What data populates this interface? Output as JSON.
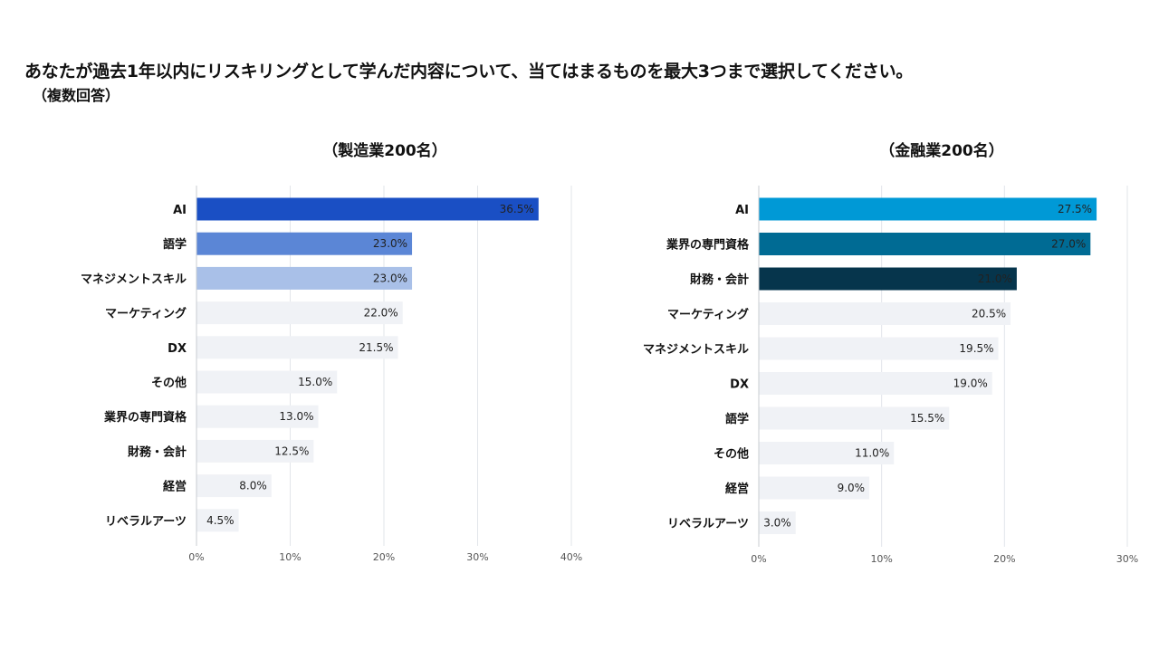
{
  "title": "あなたが過去1年以内にリスキリングとして学んだ内容について、当てはまるものを最大3つまで選択してください。",
  "subtitle": "（複数回答）",
  "chart_data": [
    {
      "type": "bar",
      "orientation": "horizontal",
      "title": "（製造業200名）",
      "categories": [
        "AI",
        "語学",
        "マネジメントスキル",
        "マーケティング",
        "DX",
        "その他",
        "業界の専門資格",
        "財務・会計",
        "経営",
        "リベラルアーツ"
      ],
      "values": [
        36.5,
        23.0,
        23.0,
        22.0,
        21.5,
        15.0,
        13.0,
        12.5,
        8.0,
        4.5
      ],
      "value_labels": [
        "36.5%",
        "23.0%",
        "23.0%",
        "22.0%",
        "21.5%",
        "15.0%",
        "13.0%",
        "12.5%",
        "8.0%",
        "4.5%"
      ],
      "bar_colors": [
        "#1a4fc4",
        "#5b86d6",
        "#a9c0e8",
        "#f0f2f6",
        "#f0f2f6",
        "#f0f2f6",
        "#f0f2f6",
        "#f0f2f6",
        "#f0f2f6",
        "#f0f2f6"
      ],
      "label_colors": [
        "#ffffff",
        "#111111",
        "#111111",
        "#222222",
        "#222222",
        "#222222",
        "#222222",
        "#222222",
        "#222222",
        "#222222"
      ],
      "xlim": [
        0,
        40
      ],
      "xticks": [
        "0%",
        "10%",
        "20%",
        "30%",
        "40%"
      ],
      "xlabel": "",
      "ylabel": "",
      "grid": true
    },
    {
      "type": "bar",
      "orientation": "horizontal",
      "title": "（金融業200名）",
      "categories": [
        "AI",
        "業界の専門資格",
        "財務・会計",
        "マーケティング",
        "マネジメントスキル",
        "DX",
        "語学",
        "その他",
        "経営",
        "リベラルアーツ"
      ],
      "values": [
        27.5,
        27.0,
        21.0,
        20.5,
        19.5,
        19.0,
        15.5,
        11.0,
        9.0,
        3.0
      ],
      "value_labels": [
        "27.5%",
        "27.0%",
        "21.0%",
        "20.5%",
        "19.5%",
        "19.0%",
        "15.5%",
        "11.0%",
        "9.0%",
        "3.0%"
      ],
      "bar_colors": [
        "#0099d6",
        "#006b94",
        "#06354c",
        "#f0f2f6",
        "#f0f2f6",
        "#f0f2f6",
        "#f0f2f6",
        "#f0f2f6",
        "#f0f2f6",
        "#f0f2f6"
      ],
      "label_colors": [
        "#ffffff",
        "#ffffff",
        "#ffffff",
        "#222222",
        "#222222",
        "#222222",
        "#222222",
        "#222222",
        "#222222",
        "#222222"
      ],
      "xlim": [
        0,
        30
      ],
      "xticks": [
        "0%",
        "10%",
        "20%",
        "30%"
      ],
      "xlabel": "",
      "ylabel": "",
      "grid": true
    }
  ]
}
